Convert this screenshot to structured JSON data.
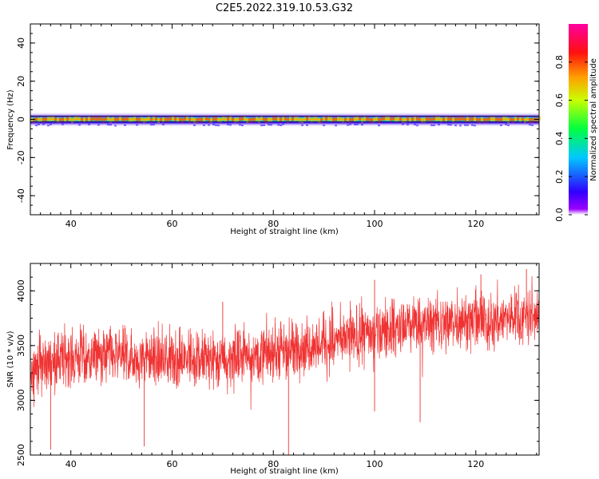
{
  "title": "C2E5.2022.319.10.53.G32",
  "colors": {
    "snr_line": "#f03232",
    "frame": "#000000"
  },
  "colorbar": {
    "label": "Normalized spectral amplitude",
    "ticks": [
      "0.0",
      "0.2",
      "0.4",
      "0.6",
      "0.8"
    ],
    "tick_values": [
      0.0,
      0.2,
      0.4,
      0.6,
      0.8
    ],
    "range": [
      0,
      1
    ],
    "colormap": "gist_rainbow (purple-blue-cyan-green-yellow-orange-red-magenta)"
  },
  "chart_data": [
    {
      "type": "heatmap",
      "xlabel": "Height of straight line (km)",
      "ylabel": "Frequency (Hz)",
      "xlim": [
        32,
        132.5
      ],
      "ylim": [
        -50,
        50
      ],
      "xticks": [
        "40",
        "60",
        "80",
        "100",
        "120"
      ],
      "xtick_values": [
        40,
        60,
        80,
        100,
        120
      ],
      "yticks": [
        "-40",
        "-20",
        "0",
        "20",
        "40"
      ],
      "ytick_values": [
        -40,
        -20,
        0,
        20,
        40
      ],
      "grid": false,
      "band": {
        "center_freq_hz": 0,
        "core_halfwidth_hz": 1,
        "outer_halfwidth_hz": 4,
        "core_amplitude": 0.95,
        "x_start": 32,
        "x_end": 132.5
      }
    },
    {
      "type": "line",
      "xlabel": "Height of straight line (km)",
      "ylabel": "SNR (10 * v/v)",
      "xlim": [
        32,
        132.5
      ],
      "ylim": [
        2500,
        4250
      ],
      "xticks": [
        "40",
        "60",
        "80",
        "100",
        "120"
      ],
      "xtick_values": [
        40,
        60,
        80,
        100,
        120
      ],
      "yticks": [
        "2500",
        "3000",
        "3500",
        "4000"
      ],
      "ytick_values": [
        2500,
        3000,
        3500,
        4000
      ],
      "grid": false,
      "series": [
        {
          "trend_x": [
            32,
            40,
            50,
            60,
            70,
            80,
            90,
            100,
            110,
            120,
            132.5
          ],
          "trend_y": [
            3300,
            3400,
            3400,
            3380,
            3370,
            3450,
            3520,
            3620,
            3700,
            3720,
            3790
          ],
          "spread": 260,
          "spikes_low": [
            [
              36,
              2550
            ],
            [
              54.5,
              2580
            ],
            [
              83,
              2460
            ],
            [
              100,
              2900
            ],
            [
              109,
              2800
            ]
          ],
          "spikes_high": [
            [
              70,
              3900
            ],
            [
              100,
              4100
            ],
            [
              121,
              4150
            ],
            [
              130,
              4200
            ]
          ]
        }
      ]
    }
  ]
}
